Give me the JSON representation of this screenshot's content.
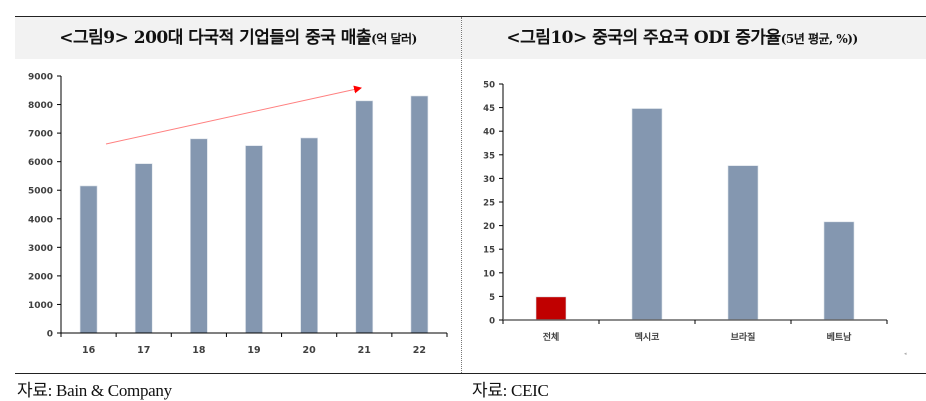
{
  "figures": [
    {
      "title_main": "<그림9> 200대 다국적 기업들의 중국 매출",
      "title_unit": "(억 달러)",
      "source": "자료: Bain & Company"
    },
    {
      "title_main": "<그림10> 중국의 주요국 ODI 증가율",
      "title_unit": "(5년 평균, %))",
      "source": "자료: CEIC"
    }
  ],
  "colors": {
    "bar": "#8497b0",
    "highlight_bar": "#c00000",
    "arrow": "#ff0000",
    "header_bg": "#f2f2f2",
    "tick_label": "#404040"
  },
  "chart_data": [
    {
      "type": "bar",
      "title": "<그림9> 200대 다국적 기업들의 중국 매출 (억 달러)",
      "xlabel": "",
      "ylabel": "",
      "categories": [
        "16",
        "17",
        "18",
        "19",
        "20",
        "21",
        "22"
      ],
      "values": [
        5150,
        5930,
        6800,
        6560,
        6830,
        8130,
        8300
      ],
      "ylim": [
        0,
        9000
      ],
      "yticks": [
        0,
        1000,
        2000,
        3000,
        4000,
        5000,
        6000,
        7000,
        8000,
        9000
      ],
      "grid": false,
      "legend": null,
      "annotations": [
        {
          "type": "arrow",
          "description": "rising trend arrow from 16 to 21",
          "color": "#ff0000"
        }
      ],
      "source": "Bain & Company"
    },
    {
      "type": "bar",
      "title": "<그림10> 중국의 주요국 ODI 증가율 (5년 평균, %)",
      "xlabel": "",
      "ylabel": "",
      "categories": [
        "전체",
        "멕시코",
        "브라질",
        "베트남"
      ],
      "values": [
        4.9,
        44.8,
        32.7,
        20.8
      ],
      "bar_colors": [
        "#c00000",
        "#8497b0",
        "#8497b0",
        "#8497b0"
      ],
      "ylim": [
        0,
        50
      ],
      "yticks": [
        0,
        5,
        10,
        15,
        20,
        25,
        30,
        35,
        40,
        45,
        50
      ],
      "grid": false,
      "legend": null,
      "source": "CEIC"
    }
  ]
}
